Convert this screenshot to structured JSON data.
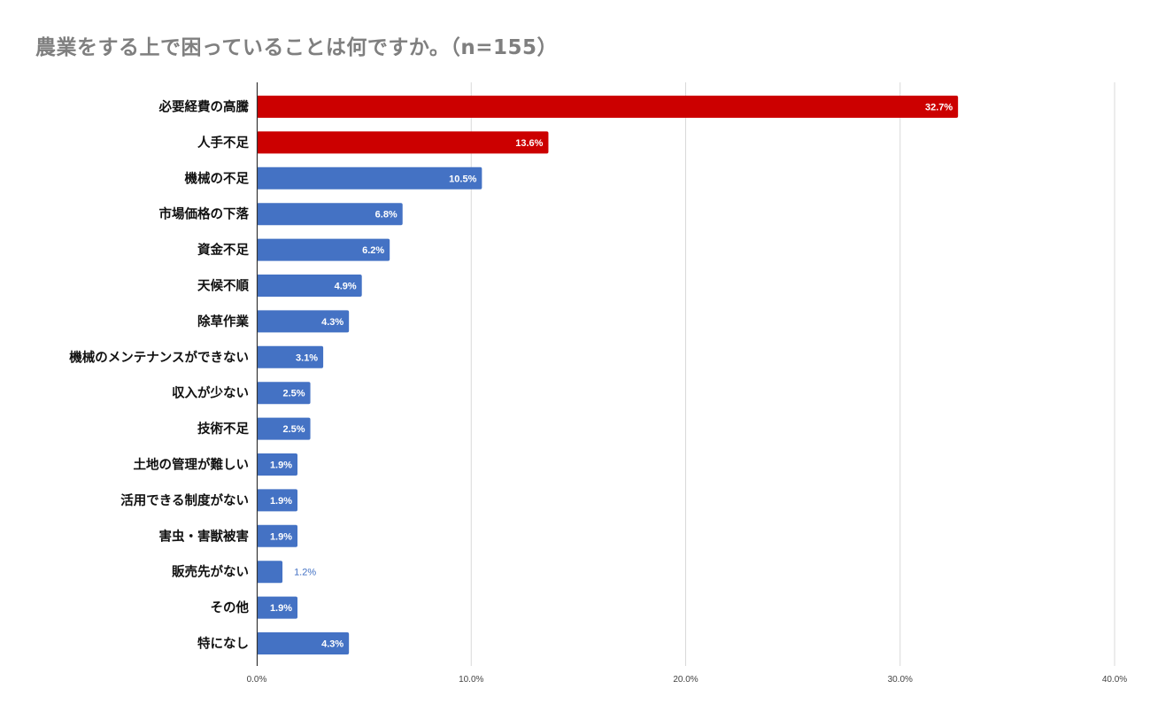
{
  "title": "農業をする上で困っていることは何ですか。（n=155）",
  "chart_data": {
    "type": "bar",
    "orientation": "horizontal",
    "categories": [
      "必要経費の高騰",
      "人手不足",
      "機械の不足",
      "市場価格の下落",
      "資金不足",
      "天候不順",
      "除草作業",
      "機械のメンテナンスができない",
      "収入が少ない",
      "技術不足",
      "土地の管理が難しい",
      "活用できる制度がない",
      "害虫・害獣被害",
      "販売先がない",
      "その他",
      "特になし"
    ],
    "values": [
      32.7,
      13.6,
      10.5,
      6.8,
      6.2,
      4.9,
      4.3,
      3.1,
      2.5,
      2.5,
      1.9,
      1.9,
      1.9,
      1.2,
      1.9,
      4.3
    ],
    "value_labels": [
      "32.7%",
      "13.6%",
      "10.5%",
      "6.8%",
      "6.2%",
      "4.9%",
      "4.3%",
      "3.1%",
      "2.5%",
      "2.5%",
      "1.9%",
      "1.9%",
      "1.9%",
      "1.2%",
      "1.9%",
      "4.3%"
    ],
    "label_outside": [
      false,
      false,
      false,
      false,
      false,
      false,
      false,
      false,
      false,
      false,
      false,
      false,
      false,
      true,
      false,
      false
    ],
    "highlighted": [
      true,
      true,
      false,
      false,
      false,
      false,
      false,
      false,
      false,
      false,
      false,
      false,
      false,
      false,
      false,
      false
    ],
    "colors": {
      "highlight": "#cc0000",
      "default": "#4472c4",
      "grid": "#d9d9d9",
      "axis": "#333333",
      "outside_label": "#4472c4"
    },
    "xlim": [
      0,
      40
    ],
    "xticks": [
      "0.0%",
      "10.0%",
      "20.0%",
      "30.0%",
      "40.0%"
    ],
    "grid": true,
    "legend": "none"
  }
}
